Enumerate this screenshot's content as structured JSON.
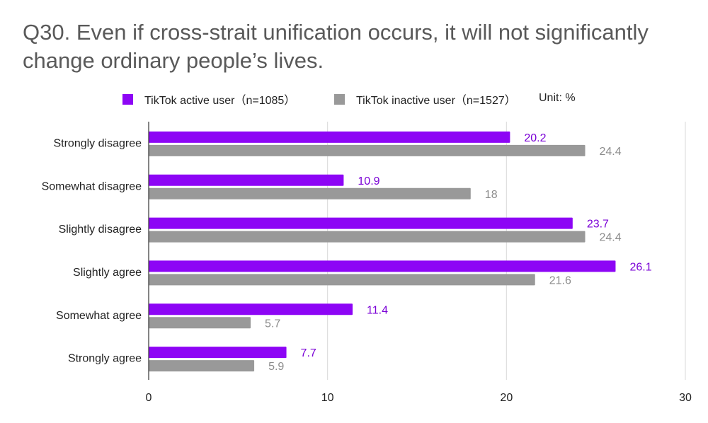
{
  "title": "Q30. Even if cross-strait unification occurs, it will not significantly change ordinary people’s lives.",
  "legend": {
    "unit": "Unit: %"
  },
  "colors": {
    "active": "#8d05f5",
    "inactive": "#999999",
    "activeLabel": "#7a00d6",
    "inactiveLabel": "#8c8c8c",
    "grid": "#d9d9d9"
  },
  "chart_data": {
    "type": "bar",
    "orientation": "horizontal",
    "title": "Q30. Even if cross-strait unification occurs, it will not significantly change ordinary people’s lives.",
    "categories": [
      "Strongly disagree",
      "Somewhat disagree",
      "Slightly disagree",
      "Slightly agree",
      "Somewhat agree",
      "Strongly agree"
    ],
    "series": [
      {
        "name": "TikTok active user（n=1085）",
        "values": [
          20.2,
          10.9,
          23.7,
          26.1,
          11.4,
          7.7
        ]
      },
      {
        "name": "TikTok inactive user（n=1527）",
        "values": [
          24.4,
          18,
          24.4,
          21.6,
          5.7,
          5.9
        ]
      }
    ],
    "xlim": [
      0,
      30
    ],
    "xticks": [
      0,
      10,
      20,
      30
    ],
    "xlabel": "",
    "ylabel": "",
    "unit": "%",
    "grid": true,
    "legend_position": "top"
  }
}
